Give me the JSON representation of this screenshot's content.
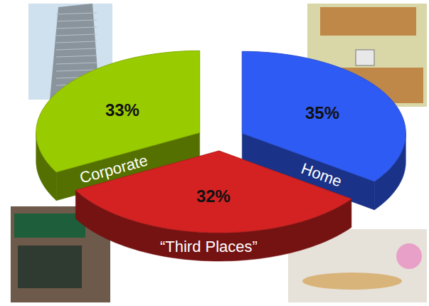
{
  "chart_data": {
    "type": "pie",
    "categories": [
      "Corporate",
      "Home",
      "“Third Places”"
    ],
    "values": [
      33,
      35,
      32
    ],
    "value_labels": [
      "33%",
      "35%",
      "32%"
    ],
    "colors": [
      "#99cc00",
      "#2f5bf5",
      "#d42222"
    ],
    "data_labels": true
  }
}
